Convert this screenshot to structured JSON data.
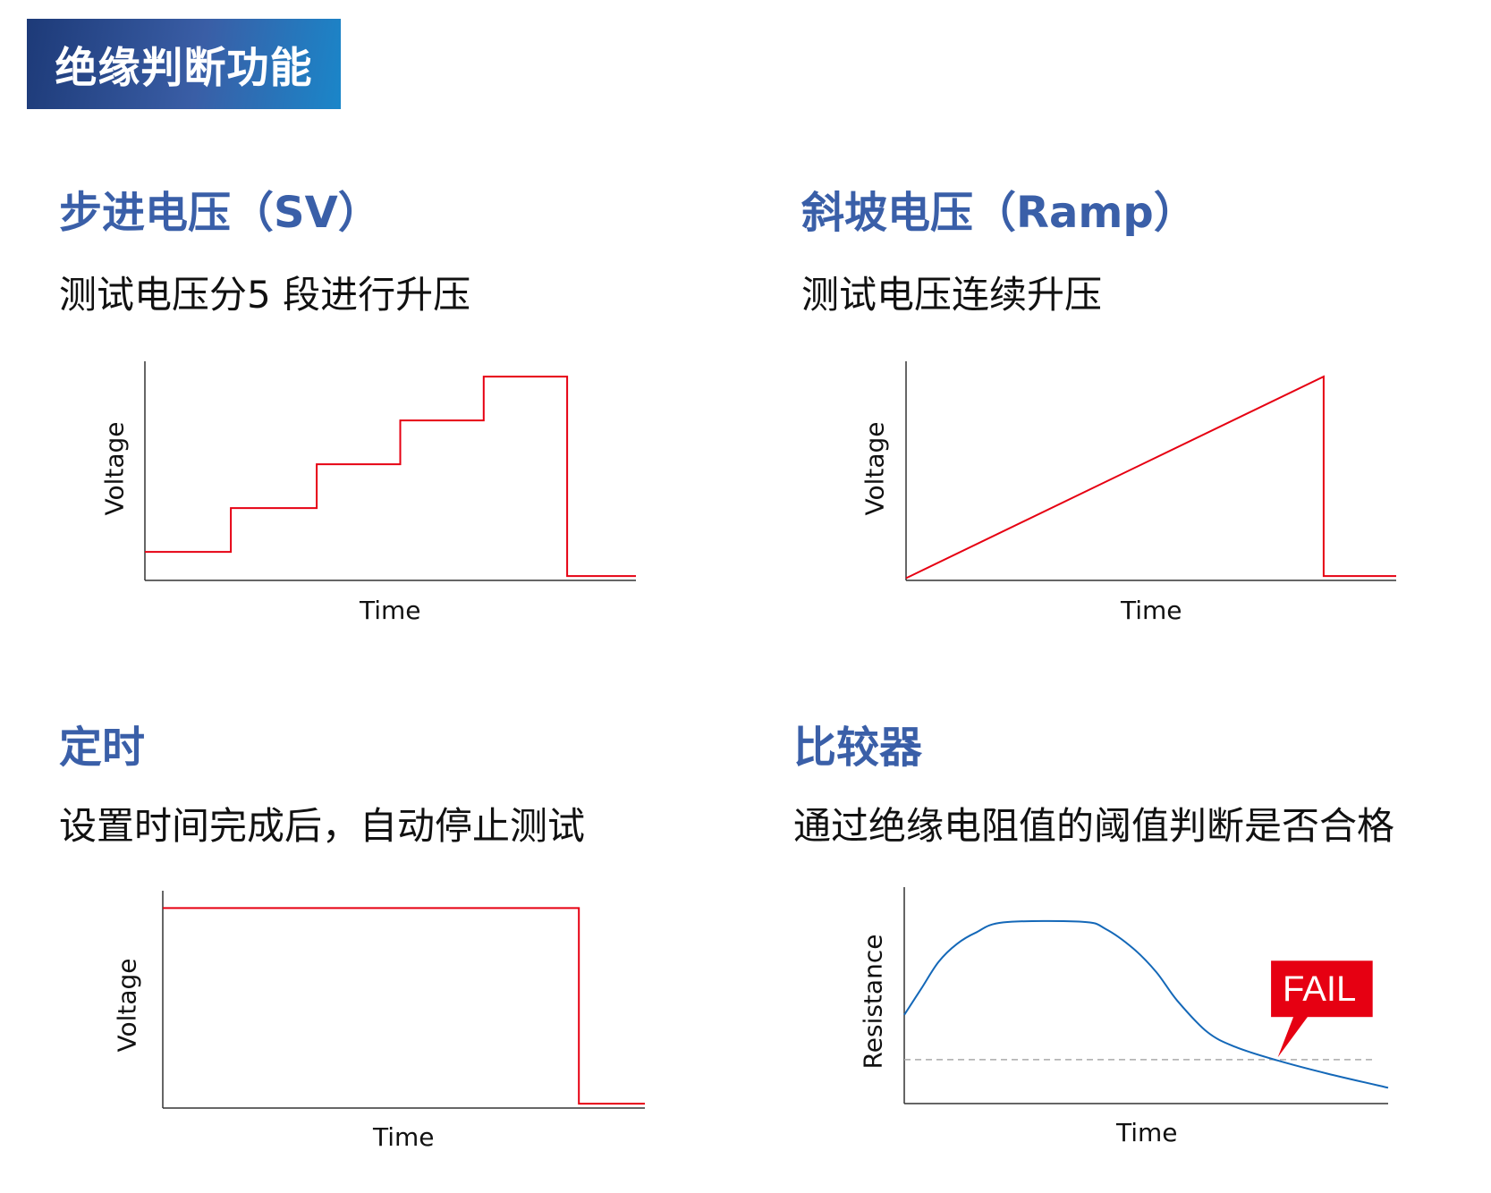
{
  "header": {
    "title": "绝缘判断功能"
  },
  "colors": {
    "title_blue": "#3a5fa8",
    "header_gradient": [
      "#1d3a78",
      "#1a86c9"
    ],
    "voltage_line": "#e60012",
    "resistance_line": "#1468b8",
    "fail_badge": "#e60012",
    "threshold": "#aaaaaa"
  },
  "sections": [
    {
      "title": "步进电压（SV）",
      "subtitle": "测试电压分5 段进行升压"
    },
    {
      "title": "斜坡电压（Ramp）",
      "subtitle": "测试电压连续升压"
    },
    {
      "title": "定时",
      "subtitle": "设置时间完成后，自动停止测试"
    },
    {
      "title": "比较器",
      "subtitle": "通过绝缘电阻值的阈值判断是否合格"
    }
  ],
  "chart_data": [
    {
      "type": "line",
      "xlabel": "Time",
      "ylabel": "Voltage",
      "xlim": [
        0,
        100
      ],
      "ylim": [
        0,
        100
      ],
      "grid": false,
      "x": [
        0,
        17.5,
        17.5,
        35,
        35,
        52,
        52,
        69,
        69,
        86,
        86,
        100
      ],
      "y": [
        13,
        13,
        33,
        33,
        53,
        53,
        73,
        73,
        93,
        93,
        2,
        2
      ]
    },
    {
      "type": "line",
      "xlabel": "Time",
      "ylabel": "Voltage",
      "xlim": [
        0,
        100
      ],
      "ylim": [
        0,
        100
      ],
      "grid": false,
      "x": [
        0,
        85.2,
        85.2,
        100
      ],
      "y": [
        1,
        93,
        2,
        2
      ]
    },
    {
      "type": "line",
      "xlabel": "Time",
      "ylabel": "Voltage",
      "xlim": [
        0,
        100
      ],
      "ylim": [
        0,
        100
      ],
      "grid": false,
      "x": [
        0,
        86.3,
        86.3,
        100
      ],
      "y": [
        92,
        92,
        2,
        2
      ]
    },
    {
      "type": "line",
      "xlabel": "Time",
      "ylabel": "Resistance",
      "xlim": [
        0,
        100
      ],
      "ylim": [
        0,
        100
      ],
      "grid": false,
      "x": [
        0,
        3.5,
        7.1,
        10.9,
        14.8,
        20.5,
        36.8,
        41.6,
        47.3,
        52.1,
        56.4,
        62.6,
        68.4,
        77,
        87.5,
        100
      ],
      "y": [
        41,
        53,
        65.5,
        73.8,
        79,
        83.7,
        84,
        80.7,
        71.7,
        60.7,
        47.6,
        33.1,
        26.2,
        20,
        13.8,
        7.3
      ],
      "threshold": 20.3,
      "annotation": {
        "text": "FAIL",
        "x": 77.2,
        "y": 21.4
      }
    }
  ]
}
